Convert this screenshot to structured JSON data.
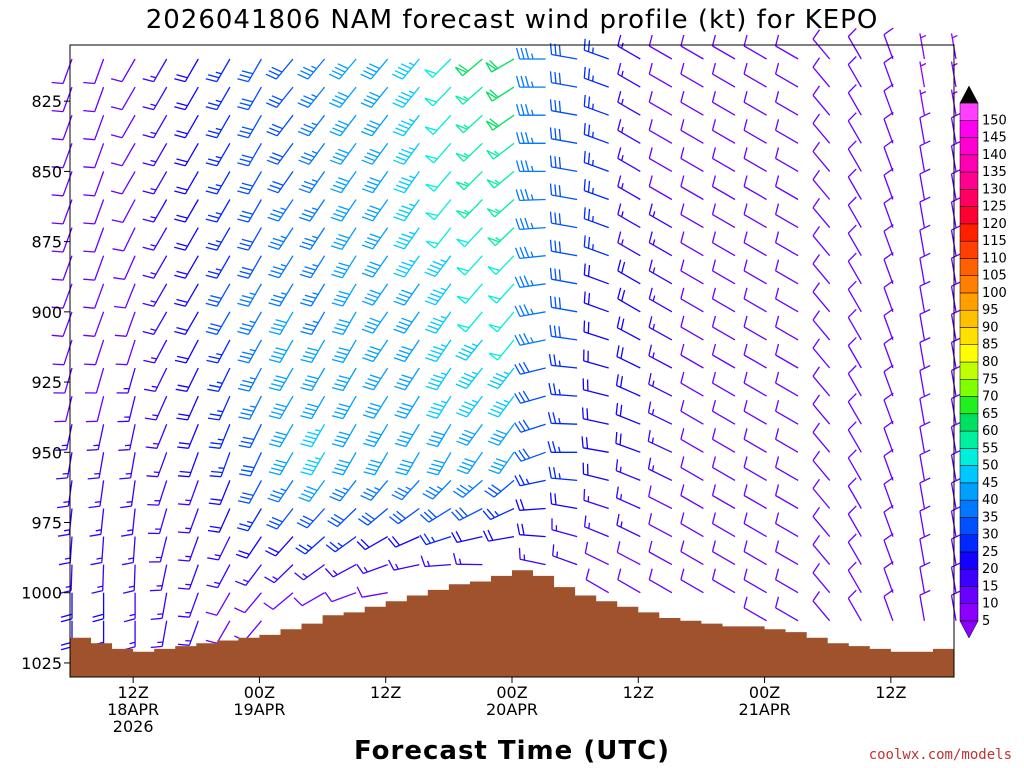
{
  "chart_data": {
    "type": "wind-barb-time-height",
    "title": "2026041806 NAM forecast wind profile (kt) for KEPO",
    "xlabel": "Forecast Time (UTC)",
    "credit": "coolwx.com/models",
    "units": "kt",
    "ylim": [
      1030,
      805
    ],
    "y_ticks": [
      {
        "value": 825,
        "label": "825"
      },
      {
        "value": 850,
        "label": "850"
      },
      {
        "value": 875,
        "label": "875"
      },
      {
        "value": 900,
        "label": "900"
      },
      {
        "value": 925,
        "label": "925"
      },
      {
        "value": 950,
        "label": "950"
      },
      {
        "value": 975,
        "label": "975"
      },
      {
        "value": 1000,
        "label": "1000"
      },
      {
        "value": 1025,
        "label": "1025"
      }
    ],
    "x_range_hours": [
      0,
      84
    ],
    "x_ticks": [
      {
        "hour": 6,
        "lines": [
          "12Z",
          "18APR",
          "2026"
        ]
      },
      {
        "hour": 18,
        "lines": [
          "00Z",
          "19APR"
        ]
      },
      {
        "hour": 30,
        "lines": [
          "12Z"
        ]
      },
      {
        "hour": 42,
        "lines": [
          "00Z",
          "20APR"
        ]
      },
      {
        "hour": 54,
        "lines": [
          "12Z"
        ]
      },
      {
        "hour": 66,
        "lines": [
          "00Z",
          "21APR"
        ]
      },
      {
        "hour": 78,
        "lines": [
          "12Z"
        ]
      }
    ],
    "colorbar": {
      "levels": [
        5,
        10,
        15,
        20,
        25,
        30,
        35,
        40,
        45,
        50,
        55,
        60,
        65,
        70,
        75,
        80,
        85,
        90,
        95,
        100,
        105,
        110,
        115,
        120,
        125,
        130,
        135,
        140,
        145,
        150
      ],
      "colors": [
        "#8c00ff",
        "#6a00ff",
        "#3c00ff",
        "#1400ff",
        "#0028ff",
        "#0050ff",
        "#0078ff",
        "#00a0ff",
        "#00c8ff",
        "#00eedd",
        "#00f0a0",
        "#00e060",
        "#20f020",
        "#80ff00",
        "#c0ff00",
        "#ffff00",
        "#ffe000",
        "#ffc000",
        "#ffa000",
        "#ff8000",
        "#ff6000",
        "#ff4000",
        "#ff2000",
        "#ff0030",
        "#ff0060",
        "#ff0090",
        "#ff00b0",
        "#ff00d0",
        "#ff00f0",
        "#ff40ff"
      ]
    },
    "surface_pressure": {
      "hours": [
        0,
        2,
        4,
        6,
        8,
        10,
        12,
        14,
        16,
        18,
        20,
        22,
        24,
        26,
        28,
        30,
        32,
        34,
        36,
        38,
        40,
        42,
        44,
        46,
        48,
        50,
        52,
        54,
        56,
        58,
        60,
        62,
        64,
        66,
        68,
        70,
        72,
        74,
        76,
        78,
        80,
        82,
        84
      ],
      "values": [
        1016,
        1018,
        1020,
        1021,
        1020,
        1019,
        1018,
        1017,
        1016,
        1015,
        1013,
        1011,
        1008,
        1007,
        1005,
        1003,
        1001,
        999,
        997,
        996,
        994,
        992,
        994,
        998,
        1001,
        1003,
        1005,
        1007,
        1009,
        1010,
        1011,
        1012,
        1012,
        1013,
        1014,
        1016,
        1018,
        1019,
        1020,
        1021,
        1021,
        1020,
        1019
      ]
    },
    "ground_color": "#a0522d",
    "profile_levels": [
      810,
      820,
      830,
      840,
      850,
      860,
      870,
      880,
      890,
      900,
      910,
      920,
      930,
      940,
      950,
      960,
      970,
      980,
      990,
      1000,
      1010
    ],
    "profile_hours": [
      0,
      3,
      6,
      9,
      12,
      15,
      18,
      21,
      24,
      27,
      30,
      33,
      36,
      39,
      42,
      45,
      48,
      51,
      54,
      57,
      60,
      63,
      66,
      69,
      72,
      75,
      78,
      81,
      84
    ],
    "wind_speed_kt": {
      "810": [
        12,
        12,
        12,
        14,
        20,
        26,
        28,
        30,
        34,
        38,
        40,
        44,
        52,
        58,
        60,
        34,
        30,
        24,
        16,
        12,
        12,
        10,
        10,
        8,
        8,
        8,
        8,
        6,
        6
      ],
      "850": [
        12,
        12,
        12,
        14,
        20,
        26,
        30,
        32,
        34,
        38,
        40,
        44,
        50,
        54,
        56,
        36,
        30,
        24,
        16,
        12,
        12,
        10,
        10,
        8,
        8,
        8,
        8,
        8,
        8
      ],
      "900": [
        10,
        10,
        12,
        14,
        20,
        28,
        34,
        38,
        36,
        38,
        40,
        42,
        44,
        48,
        50,
        34,
        28,
        22,
        18,
        14,
        12,
        10,
        10,
        8,
        8,
        8,
        8,
        8,
        8
      ],
      "950": [
        14,
        14,
        14,
        16,
        18,
        24,
        32,
        40,
        46,
        42,
        40,
        40,
        42,
        40,
        38,
        30,
        26,
        22,
        18,
        14,
        12,
        10,
        10,
        8,
        8,
        8,
        8,
        8,
        10
      ],
      "1000": [
        18,
        18,
        16,
        16,
        14,
        12,
        12,
        10,
        10,
        10,
        10,
        10,
        10,
        10,
        8,
        10,
        10,
        10,
        10,
        8,
        8,
        8,
        8,
        8,
        8,
        8,
        8,
        8,
        8
      ]
    },
    "wind_dir_deg": {
      "810": [
        200,
        200,
        210,
        210,
        210,
        210,
        210,
        220,
        220,
        220,
        220,
        220,
        225,
        230,
        240,
        270,
        280,
        290,
        300,
        300,
        300,
        300,
        300,
        300,
        320,
        330,
        340,
        350,
        350
      ],
      "850": [
        200,
        200,
        210,
        210,
        210,
        210,
        210,
        215,
        215,
        215,
        215,
        215,
        220,
        225,
        230,
        270,
        280,
        290,
        300,
        300,
        300,
        300,
        300,
        300,
        320,
        330,
        340,
        350,
        350
      ],
      "900": [
        200,
        200,
        200,
        210,
        210,
        210,
        210,
        210,
        210,
        210,
        215,
        215,
        215,
        220,
        220,
        260,
        280,
        290,
        300,
        300,
        300,
        300,
        300,
        300,
        320,
        330,
        340,
        350,
        350
      ],
      "950": [
        190,
        190,
        190,
        200,
        200,
        200,
        205,
        210,
        210,
        210,
        210,
        210,
        210,
        215,
        215,
        250,
        270,
        280,
        290,
        295,
        300,
        300,
        300,
        300,
        320,
        330,
        340,
        350,
        350
      ],
      "1000": [
        180,
        180,
        180,
        190,
        200,
        210,
        220,
        230,
        240,
        250,
        260,
        270,
        280,
        285,
        290,
        290,
        295,
        300,
        300,
        300,
        300,
        300,
        300,
        300,
        320,
        330,
        340,
        350,
        350
      ]
    }
  }
}
